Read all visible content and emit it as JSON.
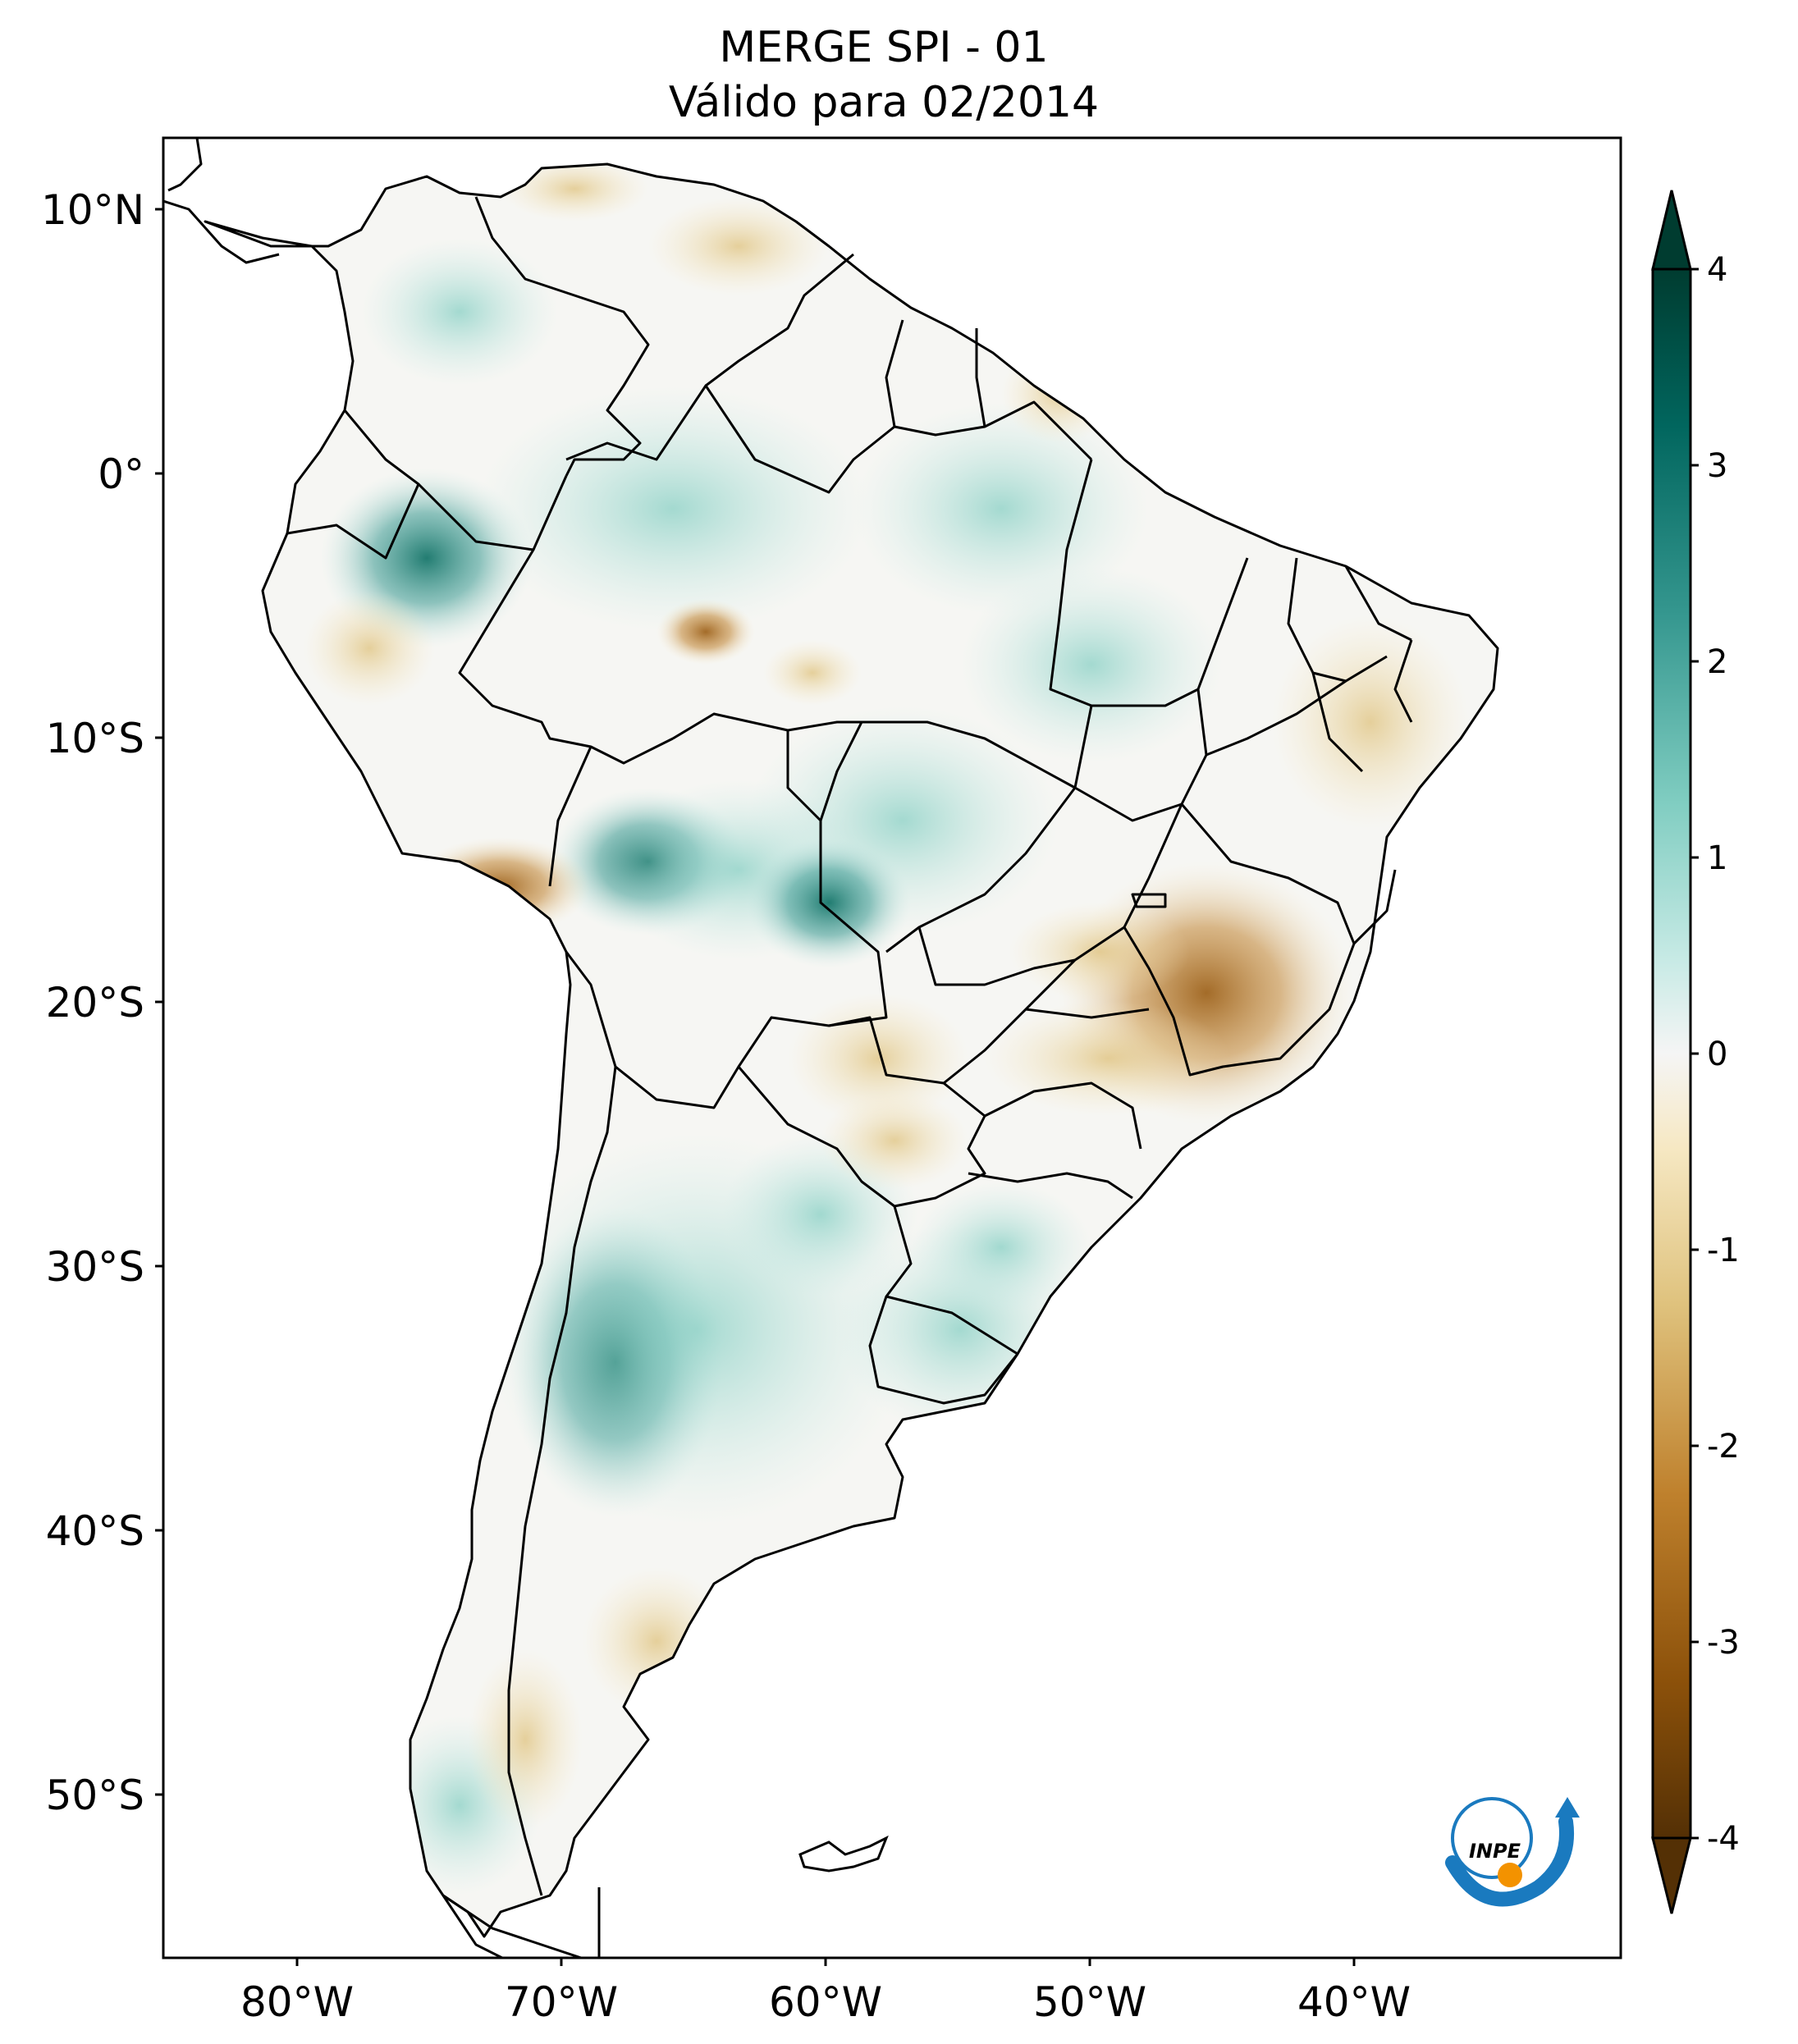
{
  "title": {
    "line1": "MERGE   SPI - 01",
    "line2": "Válido para 02/2014"
  },
  "axes": {
    "lat_ticks": [
      "10°N",
      "0°",
      "10°S",
      "20°S",
      "30°S",
      "40°S",
      "50°S"
    ],
    "lon_ticks": [
      "80°W",
      "70°W",
      "60°W",
      "50°W",
      "40°W"
    ],
    "lat_range": [
      -56.5,
      12.5
    ],
    "lon_range": [
      -85,
      -30
    ]
  },
  "colorbar": {
    "ticks": [
      "4",
      "3",
      "2",
      "1",
      "0",
      "-1",
      "-2",
      "-3",
      "-4"
    ],
    "range": [
      -4,
      4
    ],
    "colors": {
      "dry_extreme": "#543005",
      "dry_strong": "#8c510a",
      "dry_moderate": "#bf812d",
      "dry_mild": "#dfc27d",
      "dry_light": "#f6e8c3",
      "neutral": "#f5f5f5",
      "wet_light": "#c7eae5",
      "wet_mild": "#80cdc1",
      "wet_moderate": "#35978f",
      "wet_strong": "#01665e",
      "wet_extreme": "#003c30"
    }
  },
  "logo": {
    "text": "INPE"
  },
  "colors": {
    "border": "#000000",
    "frame": "#000000"
  }
}
